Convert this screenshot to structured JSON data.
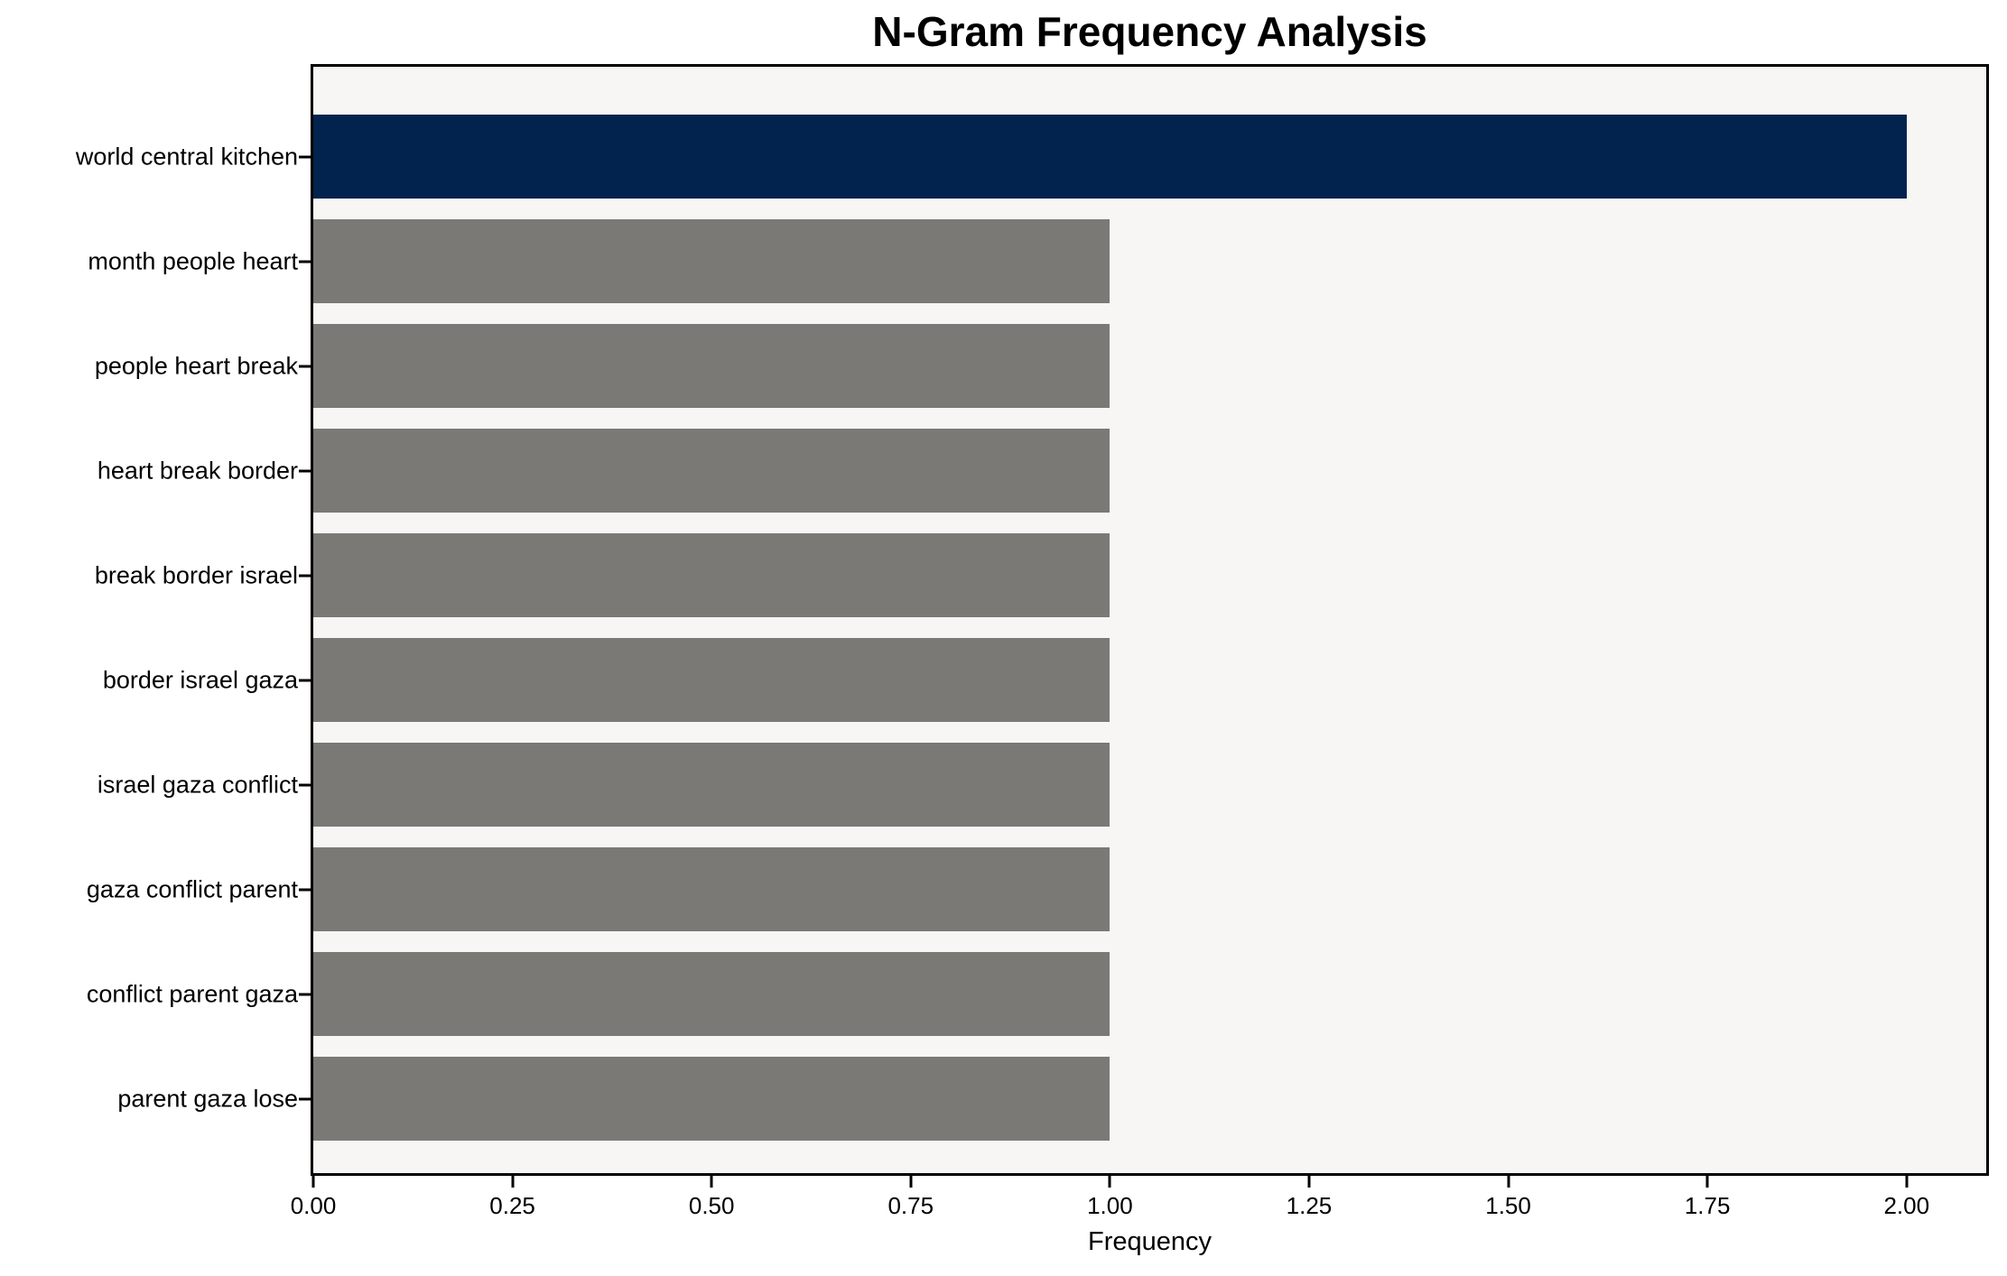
{
  "chart_data": {
    "type": "bar",
    "orientation": "horizontal",
    "title": "N-Gram Frequency Analysis",
    "xlabel": "Frequency",
    "ylabel": "",
    "categories": [
      "world central kitchen",
      "month people heart",
      "people heart break",
      "heart break border",
      "break border israel",
      "border israel gaza",
      "israel gaza conflict",
      "gaza conflict parent",
      "conflict parent gaza",
      "parent gaza lose"
    ],
    "values": [
      2,
      1,
      1,
      1,
      1,
      1,
      1,
      1,
      1,
      1
    ],
    "bar_colors_by_index": [
      "#02234e",
      "#7a7976",
      "#7a7976",
      "#7a7976",
      "#7a7976",
      "#7a7976",
      "#7a7976",
      "#7a7976",
      "#7a7976",
      "#7a7976"
    ],
    "xticks": {
      "values": [
        0,
        0.25,
        0.5,
        0.75,
        1,
        1.25,
        1.5,
        1.75,
        2
      ],
      "labels": [
        "0.00",
        "0.25",
        "0.50",
        "0.75",
        "1.00",
        "1.25",
        "1.50",
        "1.75",
        "2.00"
      ]
    },
    "xlim": [
      0,
      2.1
    ],
    "grid": false,
    "legend": "none",
    "colors": {
      "highlight_bar": "#02234e",
      "regular_bar": "#7a7976",
      "plot_background": "#f7f6f5",
      "figure_background": "#ffffff",
      "axis": "#000000",
      "text": "#000000"
    }
  }
}
